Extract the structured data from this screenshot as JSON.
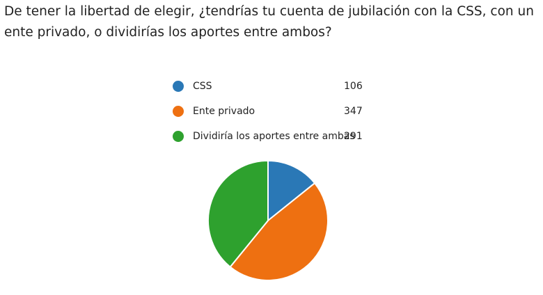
{
  "chart_data": {
    "type": "pie",
    "title": "De tener la libertad de elegir, ¿tendrías tu cuenta de jubilación con la CSS, con un ente privado, o dividirías los aportes entre ambos?",
    "categories": [
      "CSS",
      "Ente privado",
      "Dividiría los aportes entre ambas"
    ],
    "values": [
      106,
      347,
      291
    ],
    "colors": [
      "#2a78b6",
      "#ee7011",
      "#2ea12e"
    ]
  }
}
